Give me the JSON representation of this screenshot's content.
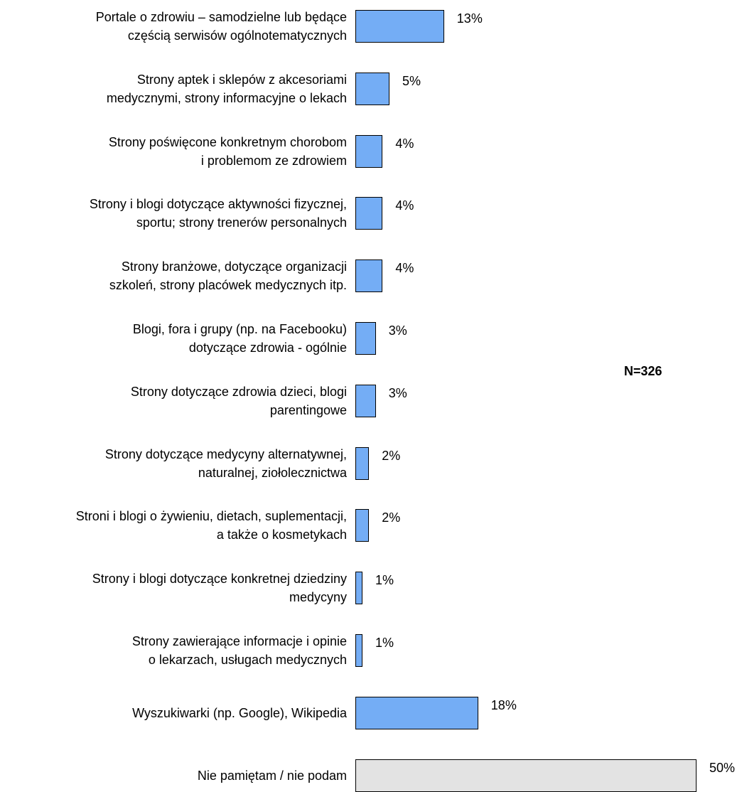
{
  "chart_data": {
    "type": "bar",
    "orientation": "horizontal",
    "categories": [
      [
        "Portale o zdrowiu – samodzielne lub będące",
        "częścią serwisów ogólnotematycznych"
      ],
      [
        "Strony aptek i sklepów z akcesoriami",
        "medycznymi, strony informacyjne o lekach"
      ],
      [
        "Strony poświęcone konkretnym chorobom",
        "i problemom ze zdrowiem"
      ],
      [
        "Strony i blogi dotyczące aktywności fizycznej,",
        "sportu; strony trenerów personalnych"
      ],
      [
        "Strony branżowe, dotyczące organizacji",
        "szkoleń, strony placówek medycznych itp."
      ],
      [
        "Blogi, fora i grupy  (np. na Facebooku)",
        "dotyczące zdrowia - ogólnie"
      ],
      [
        "Strony dotyczące zdrowia dzieci, blogi",
        "parentingowe"
      ],
      [
        "Strony dotyczące medycyny alternatywnej,",
        "naturalnej, ziołolecznictwa"
      ],
      [
        "Stroni i blogi o żywieniu, dietach, suplementacji,",
        "a także o kosmetykach"
      ],
      [
        "Strony i blogi dotyczące konkretnej dziedziny",
        "medycyny"
      ],
      [
        "Strony zawierające informacje i opinie",
        "o lekarzach, usługach medycznych"
      ],
      [
        "Wyszukiwarki (np. Google), Wikipedia"
      ],
      [
        "Nie pamiętam / nie podam"
      ]
    ],
    "values": [
      13,
      5,
      4,
      4,
      4,
      3,
      3,
      2,
      2,
      1,
      1,
      18,
      50
    ],
    "value_labels": [
      "13%",
      "5%",
      "4%",
      "4%",
      "4%",
      "3%",
      "3%",
      "2%",
      "2%",
      "1%",
      "1%",
      "18%",
      "50%"
    ],
    "xlim": [
      0,
      50
    ],
    "grid": false,
    "colors": {
      "default": "#74adf5",
      "last": "#e3e3e3",
      "border": "#000000"
    },
    "annotation": "N=326"
  }
}
